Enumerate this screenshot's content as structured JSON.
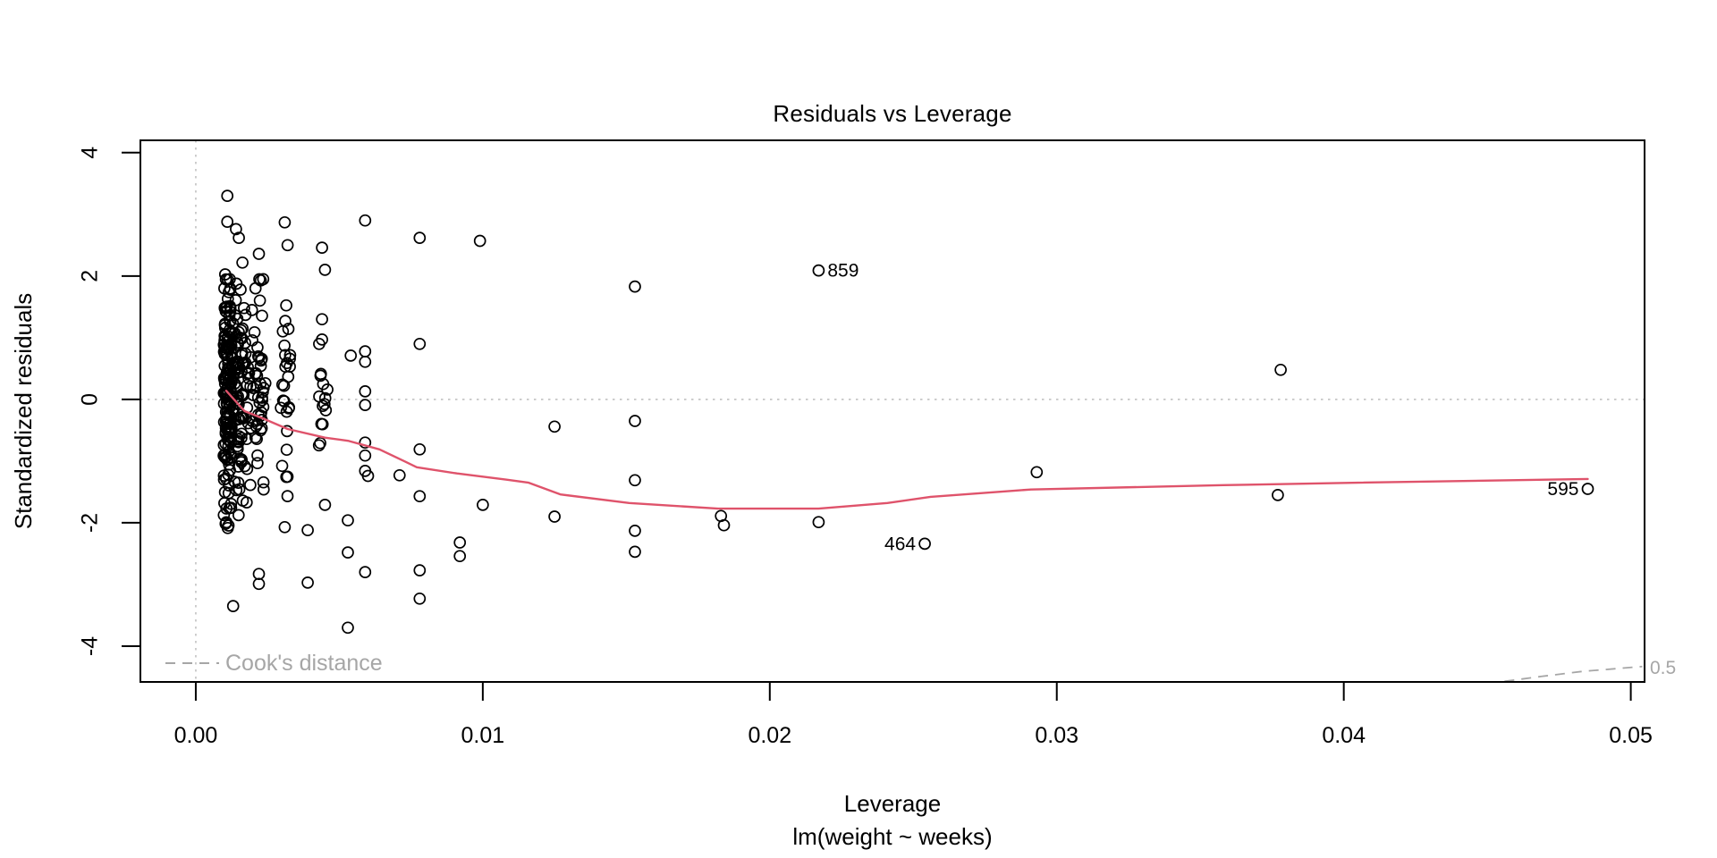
{
  "figure": {
    "title": "Residuals vs Leverage",
    "x_axis_label": "Leverage",
    "y_axis_label": "Standardized residuals",
    "subtitle": "lm(weight ~ weeks)"
  },
  "legend": {
    "cooks_label": "Cook's distance",
    "contour_label": "0.5"
  },
  "colors": {
    "smooth_line": "#df536b",
    "reference_line": "#c6c6c6",
    "cooks_gray": "#a6a6a6",
    "points": "#000000",
    "frame": "#000000"
  },
  "chart_data": {
    "type": "scatter",
    "title": "Residuals vs Leverage",
    "xlabel": "Leverage",
    "ylabel": "Standardized residuals",
    "subtitle": "lm(weight ~ weeks)",
    "xlim": [
      -0.00193,
      0.05048
    ],
    "ylim": [
      -4.58,
      4.2
    ],
    "grid": false,
    "x_ticks": {
      "values": [
        0,
        0.01,
        0.02,
        0.03,
        0.04,
        0.05
      ],
      "labels": [
        "0.00",
        "0.01",
        "0.02",
        "0.03",
        "0.04",
        "0.05"
      ]
    },
    "y_ticks": {
      "values": [
        -4,
        -2,
        0,
        2,
        4
      ],
      "labels": [
        "-4",
        "-2",
        "0",
        "2",
        "4"
      ]
    },
    "reference_lines": {
      "horizontal_y": 0,
      "vertical_x": 0
    },
    "labeled_points": [
      {
        "label": "859",
        "x": 0.0217,
        "y": 2.09,
        "side": "right"
      },
      {
        "label": "464",
        "x": 0.0254,
        "y": -2.34,
        "side": "left"
      },
      {
        "label": "595",
        "x": 0.0485,
        "y": -1.45,
        "side": "left"
      }
    ],
    "points": [
      [
        0.0011,
        3.3
      ],
      [
        0.0011,
        2.88
      ],
      [
        0.0014,
        2.76
      ],
      [
        0.0015,
        2.62
      ],
      [
        0.0022,
        2.36
      ],
      [
        0.0031,
        2.87
      ],
      [
        0.0032,
        2.5
      ],
      [
        0.0044,
        2.46
      ],
      [
        0.0045,
        2.1
      ],
      [
        0.0059,
        2.9
      ],
      [
        0.0078,
        2.62
      ],
      [
        0.0099,
        2.57
      ],
      [
        0.0153,
        1.83
      ],
      [
        0.0044,
        1.3
      ],
      [
        0.0044,
        0.97
      ],
      [
        0.0043,
        0.9
      ],
      [
        0.0054,
        0.71
      ],
      [
        0.0059,
        0.78
      ],
      [
        0.0059,
        0.61
      ],
      [
        0.0078,
        0.9
      ],
      [
        0.0059,
        0.13
      ],
      [
        0.0059,
        -0.09
      ],
      [
        0.0059,
        -0.7
      ],
      [
        0.0059,
        -0.91
      ],
      [
        0.0059,
        -1.16
      ],
      [
        0.006,
        -1.24
      ],
      [
        0.0059,
        -2.8
      ],
      [
        0.0045,
        -1.71
      ],
      [
        0.0053,
        -1.96
      ],
      [
        0.0053,
        -2.48
      ],
      [
        0.0053,
        -3.7
      ],
      [
        0.0071,
        -1.23
      ],
      [
        0.0078,
        -0.81
      ],
      [
        0.0078,
        -1.57
      ],
      [
        0.0078,
        -2.77
      ],
      [
        0.0078,
        -3.23
      ],
      [
        0.01,
        -1.71
      ],
      [
        0.0092,
        -2.32
      ],
      [
        0.0092,
        -2.54
      ],
      [
        0.0022,
        -2.83
      ],
      [
        0.0022,
        -2.99
      ],
      [
        0.0031,
        -2.07
      ],
      [
        0.0039,
        -2.12
      ],
      [
        0.0039,
        -2.97
      ],
      [
        0.0013,
        -3.35
      ],
      [
        0.0125,
        -0.44
      ],
      [
        0.0125,
        -1.9
      ],
      [
        0.0153,
        -0.35
      ],
      [
        0.0153,
        -1.31
      ],
      [
        0.0153,
        -2.13
      ],
      [
        0.0153,
        -2.47
      ],
      [
        0.0183,
        -1.89
      ],
      [
        0.0184,
        -2.04
      ],
      [
        0.0217,
        -1.99
      ],
      [
        0.0293,
        -1.18
      ],
      [
        0.0378,
        0.48
      ],
      [
        0.0377,
        -1.55
      ]
    ],
    "dense_columns": [
      {
        "x": 0.0011,
        "x_jitter": 0.00013,
        "y_min": -2.3,
        "y_max": 2.55,
        "count": 150
      },
      {
        "x": 0.00143,
        "x_jitter": 0.00021,
        "y_min": -2.2,
        "y_max": 2.3,
        "count": 85
      },
      {
        "x": 0.00183,
        "x_jitter": 0.00018,
        "y_min": -2.0,
        "y_max": 1.9,
        "count": 30
      },
      {
        "x": 0.00224,
        "x_jitter": 0.0002,
        "y_min": -1.95,
        "y_max": 2.15,
        "count": 40
      },
      {
        "x": 0.00312,
        "x_jitter": 0.00017,
        "y_min": -1.85,
        "y_max": 1.95,
        "count": 26
      },
      {
        "x": 0.00443,
        "x_jitter": 0.00016,
        "y_min": -1.55,
        "y_max": 1.5,
        "count": 13
      }
    ],
    "seed": 42,
    "smooth_line": [
      [
        0.00106,
        0.14
      ],
      [
        0.0017,
        -0.19
      ],
      [
        0.0023,
        -0.3
      ],
      [
        0.0032,
        -0.48
      ],
      [
        0.0045,
        -0.62
      ],
      [
        0.0053,
        -0.67
      ],
      [
        0.0064,
        -0.81
      ],
      [
        0.0073,
        -1.01
      ],
      [
        0.0077,
        -1.1
      ],
      [
        0.0091,
        -1.2
      ],
      [
        0.0108,
        -1.3
      ],
      [
        0.0116,
        -1.35
      ],
      [
        0.0127,
        -1.54
      ],
      [
        0.0151,
        -1.68
      ],
      [
        0.0182,
        -1.77
      ],
      [
        0.0217,
        -1.77
      ],
      [
        0.0241,
        -1.68
      ],
      [
        0.0256,
        -1.58
      ],
      [
        0.0291,
        -1.46
      ],
      [
        0.0358,
        -1.39
      ],
      [
        0.0405,
        -1.35
      ],
      [
        0.0485,
        -1.29
      ]
    ],
    "cooks_contour": {
      "level": 0.5,
      "points": [
        [
          0.0456,
          -4.57
        ],
        [
          0.0469,
          -4.49
        ],
        [
          0.0483,
          -4.41
        ],
        [
          0.0504,
          -4.33
        ]
      ]
    }
  }
}
